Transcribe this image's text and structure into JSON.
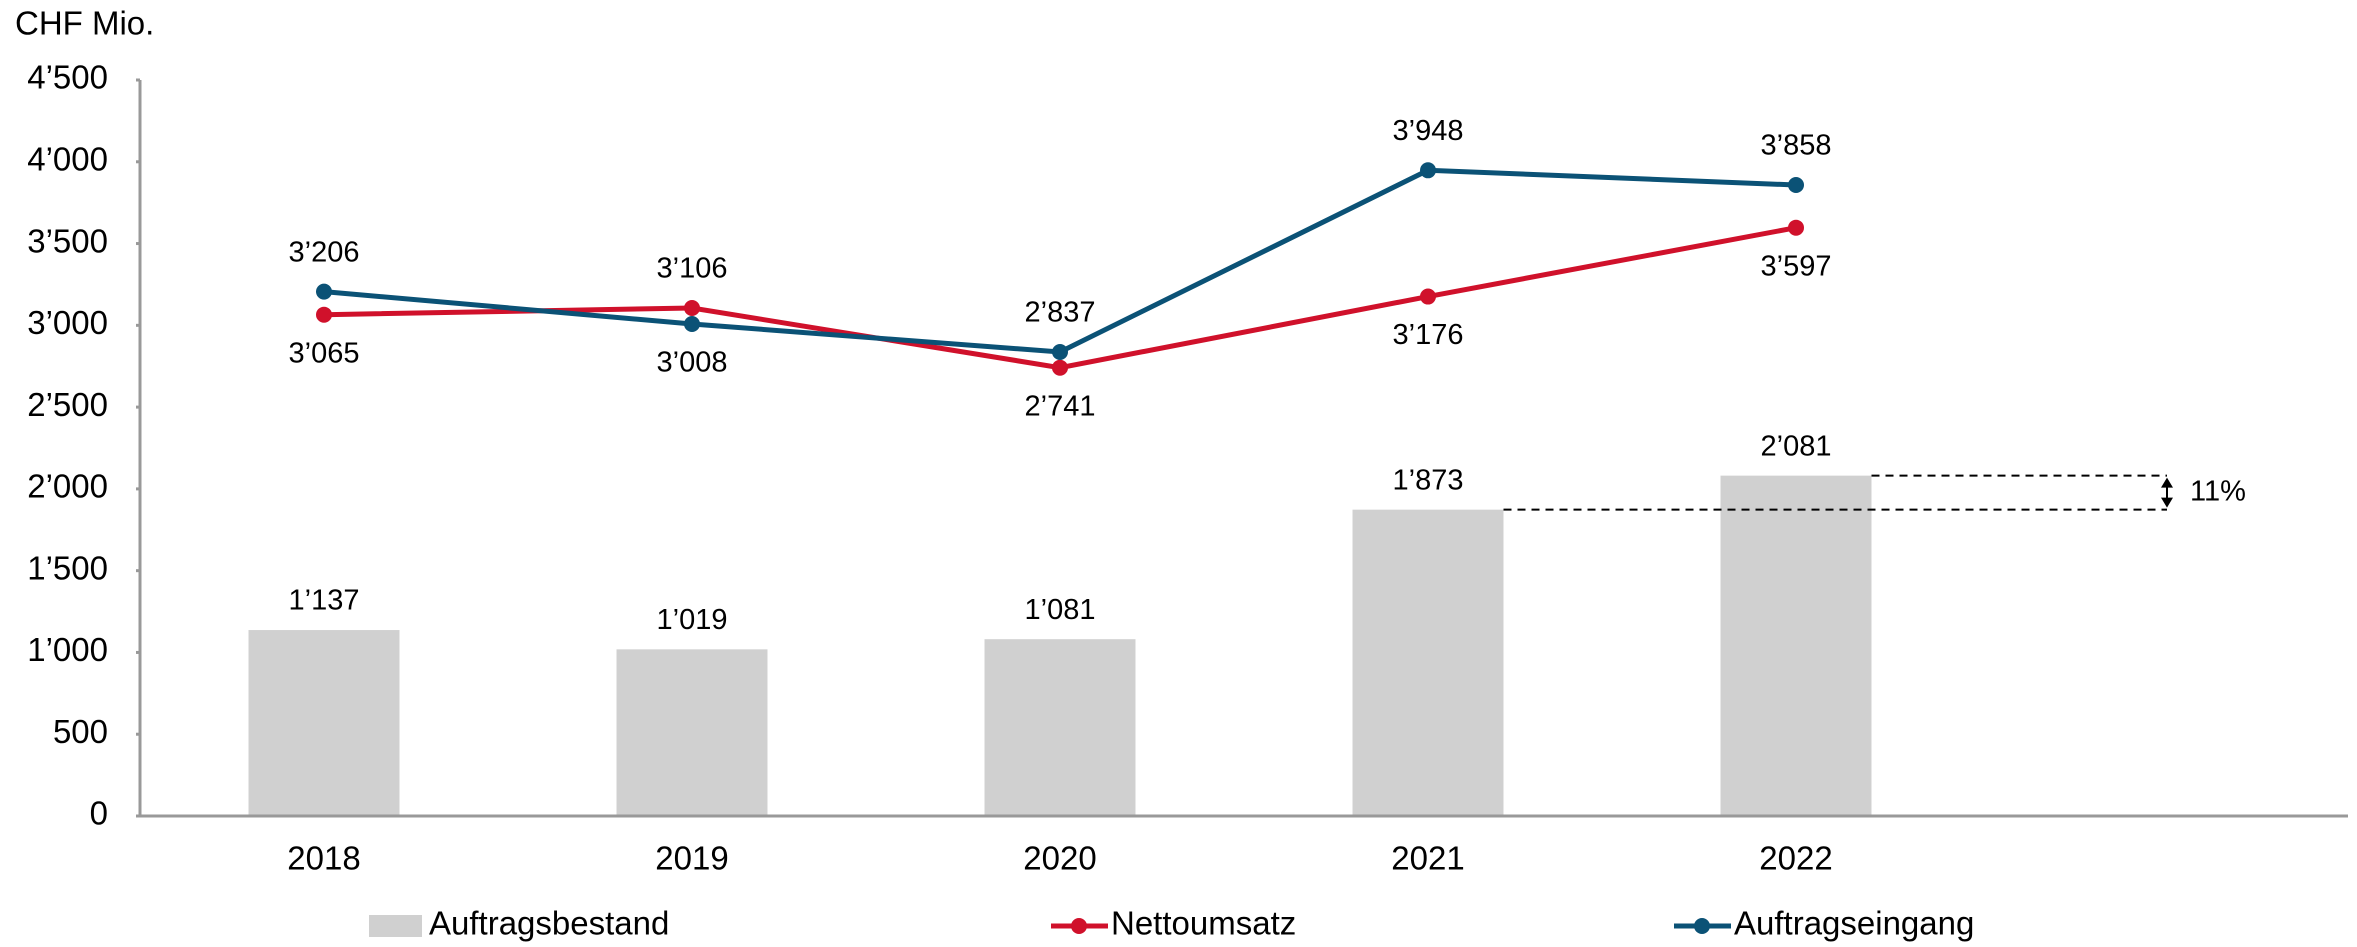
{
  "chart_data": {
    "type": "bar_line",
    "y_label": "CHF Mio.",
    "categories": [
      "2018",
      "2019",
      "2020",
      "2021",
      "2022"
    ],
    "ylim": [
      0,
      4500
    ],
    "yticks": [
      0,
      500,
      {
        "value": 1000,
        "label": "1’000"
      },
      {
        "value": 1500,
        "label": "1’500"
      },
      {
        "value": 2000,
        "label": "2’000"
      },
      {
        "value": 2500,
        "label": "2’500"
      },
      {
        "value": 3000,
        "label": "3’000"
      },
      {
        "value": 3500,
        "label": "3’500"
      },
      {
        "value": 4000,
        "label": "4’000"
      },
      {
        "value": 4500,
        "label": "4’500"
      }
    ],
    "series": [
      {
        "name": "Auftragsbestand",
        "type": "bar",
        "color": "#d0d0d0",
        "values": [
          1137,
          1019,
          1081,
          1873,
          2081
        ],
        "value_labels": [
          "1’137",
          "1’019",
          "1’081",
          "1’873",
          "2’081"
        ]
      },
      {
        "name": "Nettoumsatz",
        "type": "line",
        "color": "#d0112b",
        "values": [
          3065,
          3106,
          2741,
          3176,
          3597
        ],
        "value_labels": [
          "3’065",
          "3’106",
          "2’741",
          "3’176",
          "3’597"
        ]
      },
      {
        "name": "Auftragseingang",
        "type": "line",
        "color": "#0b5276",
        "values": [
          3206,
          3008,
          2837,
          3948,
          3858
        ],
        "value_labels": [
          "3’206",
          "3’008",
          "2’837",
          "3’948",
          "3’858"
        ]
      }
    ],
    "annotation": "11%"
  }
}
